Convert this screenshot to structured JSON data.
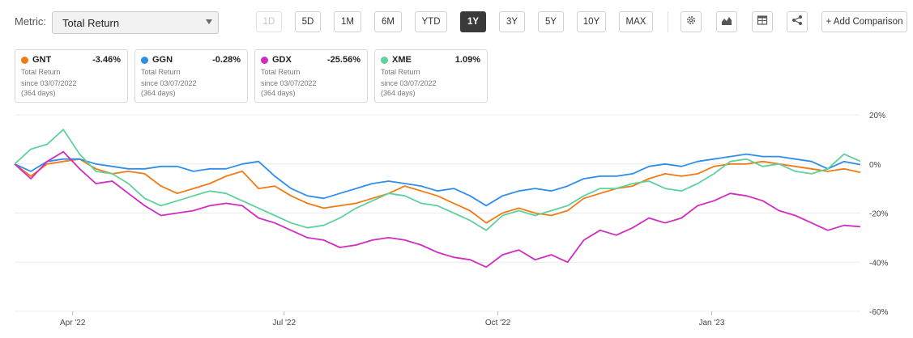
{
  "metric": {
    "label": "Metric:",
    "value": "Total Return"
  },
  "ranges": [
    {
      "label": "1D",
      "state": "disabled"
    },
    {
      "label": "5D",
      "state": "normal"
    },
    {
      "label": "1M",
      "state": "normal"
    },
    {
      "label": "6M",
      "state": "normal"
    },
    {
      "label": "YTD",
      "state": "normal"
    },
    {
      "label": "1Y",
      "state": "active"
    },
    {
      "label": "3Y",
      "state": "normal"
    },
    {
      "label": "5Y",
      "state": "normal"
    },
    {
      "label": "10Y",
      "state": "normal"
    },
    {
      "label": "MAX",
      "state": "normal"
    }
  ],
  "tools": {
    "icons": [
      "gear-icon",
      "chart-type-icon",
      "table-icon",
      "share-icon"
    ],
    "add_comparison": "+ Add Comparison"
  },
  "cards": [
    {
      "ticker": "GNT",
      "change": "-3.46%",
      "color": "#f07b16",
      "line1": "Total Return",
      "line2": "since 03/07/2022",
      "line3": "(364 days)"
    },
    {
      "ticker": "GGN",
      "change": "-0.28%",
      "color": "#2e8eea",
      "line1": "Total Return",
      "line2": "since 03/07/2022",
      "line3": "(364 days)"
    },
    {
      "ticker": "GDX",
      "change": "-25.56%",
      "color": "#d12cc0",
      "line1": "Total Return",
      "line2": "since 03/07/2022",
      "line3": "(364 days)"
    },
    {
      "ticker": "XME",
      "change": "1.09%",
      "color": "#5fd19b",
      "line1": "Total Return",
      "line2": "since 03/07/2022",
      "line3": "(364 days)"
    }
  ],
  "chart_data": {
    "type": "line",
    "x_axis": {
      "type": "date",
      "range": [
        "2022-03-07",
        "2023-03-06"
      ],
      "ticks": [
        {
          "date": "2022-04-01",
          "label": "Apr '22"
        },
        {
          "date": "2022-07-01",
          "label": "Jul '22"
        },
        {
          "date": "2022-10-01",
          "label": "Oct '22"
        },
        {
          "date": "2023-01-01",
          "label": "Jan '23"
        }
      ]
    },
    "y_axis": {
      "min": -60,
      "max": 20,
      "ticks": [
        20,
        0,
        -20,
        -40,
        -60
      ],
      "tick_labels": [
        "20%",
        "0%",
        "-20%",
        "-40%",
        "-60%"
      ],
      "position": "right"
    },
    "grid": {
      "horizontal": true,
      "vertical": false
    },
    "series": [
      {
        "name": "GNT",
        "color": "#f07b16",
        "points": [
          [
            "2022-03-07",
            0
          ],
          [
            "2022-03-14",
            -5
          ],
          [
            "2022-03-21",
            0
          ],
          [
            "2022-03-28",
            1
          ],
          [
            "2022-04-04",
            2
          ],
          [
            "2022-04-11",
            -2
          ],
          [
            "2022-04-18",
            -4
          ],
          [
            "2022-04-25",
            -3
          ],
          [
            "2022-05-02",
            -4
          ],
          [
            "2022-05-09",
            -9
          ],
          [
            "2022-05-16",
            -12
          ],
          [
            "2022-05-23",
            -10
          ],
          [
            "2022-05-30",
            -8
          ],
          [
            "2022-06-06",
            -5
          ],
          [
            "2022-06-13",
            -3
          ],
          [
            "2022-06-20",
            -10
          ],
          [
            "2022-06-27",
            -9
          ],
          [
            "2022-07-04",
            -13
          ],
          [
            "2022-07-11",
            -16
          ],
          [
            "2022-07-18",
            -18
          ],
          [
            "2022-07-25",
            -17
          ],
          [
            "2022-08-01",
            -16
          ],
          [
            "2022-08-08",
            -14
          ],
          [
            "2022-08-15",
            -12
          ],
          [
            "2022-08-22",
            -9
          ],
          [
            "2022-08-29",
            -11
          ],
          [
            "2022-09-05",
            -13
          ],
          [
            "2022-09-12",
            -16
          ],
          [
            "2022-09-19",
            -19
          ],
          [
            "2022-09-26",
            -24
          ],
          [
            "2022-10-03",
            -20
          ],
          [
            "2022-10-10",
            -18
          ],
          [
            "2022-10-17",
            -20
          ],
          [
            "2022-10-24",
            -21
          ],
          [
            "2022-10-31",
            -19
          ],
          [
            "2022-11-07",
            -14
          ],
          [
            "2022-11-14",
            -12
          ],
          [
            "2022-11-21",
            -10
          ],
          [
            "2022-11-28",
            -9
          ],
          [
            "2022-12-05",
            -6
          ],
          [
            "2022-12-12",
            -4
          ],
          [
            "2022-12-19",
            -5
          ],
          [
            "2022-12-26",
            -4
          ],
          [
            "2023-01-02",
            -1
          ],
          [
            "2023-01-09",
            0
          ],
          [
            "2023-01-16",
            0
          ],
          [
            "2023-01-23",
            1
          ],
          [
            "2023-01-30",
            0
          ],
          [
            "2023-02-06",
            -1
          ],
          [
            "2023-02-13",
            -2
          ],
          [
            "2023-02-20",
            -3
          ],
          [
            "2023-02-27",
            -2
          ],
          [
            "2023-03-06",
            -3.46
          ]
        ]
      },
      {
        "name": "GGN",
        "color": "#2e8eea",
        "points": [
          [
            "2022-03-07",
            0
          ],
          [
            "2022-03-14",
            -3
          ],
          [
            "2022-03-21",
            1
          ],
          [
            "2022-03-28",
            2
          ],
          [
            "2022-04-04",
            2
          ],
          [
            "2022-04-11",
            0
          ],
          [
            "2022-04-18",
            -1
          ],
          [
            "2022-04-25",
            -2
          ],
          [
            "2022-05-02",
            -2
          ],
          [
            "2022-05-09",
            -1
          ],
          [
            "2022-05-16",
            -1
          ],
          [
            "2022-05-23",
            -3
          ],
          [
            "2022-05-30",
            -2
          ],
          [
            "2022-06-06",
            -2
          ],
          [
            "2022-06-13",
            0
          ],
          [
            "2022-06-20",
            1
          ],
          [
            "2022-06-27",
            -5
          ],
          [
            "2022-07-04",
            -10
          ],
          [
            "2022-07-11",
            -13
          ],
          [
            "2022-07-18",
            -14
          ],
          [
            "2022-07-25",
            -12
          ],
          [
            "2022-08-01",
            -10
          ],
          [
            "2022-08-08",
            -8
          ],
          [
            "2022-08-15",
            -7
          ],
          [
            "2022-08-22",
            -8
          ],
          [
            "2022-08-29",
            -9
          ],
          [
            "2022-09-05",
            -11
          ],
          [
            "2022-09-12",
            -10
          ],
          [
            "2022-09-19",
            -13
          ],
          [
            "2022-09-26",
            -17
          ],
          [
            "2022-10-03",
            -13
          ],
          [
            "2022-10-10",
            -11
          ],
          [
            "2022-10-17",
            -10
          ],
          [
            "2022-10-24",
            -11
          ],
          [
            "2022-10-31",
            -9
          ],
          [
            "2022-11-07",
            -6
          ],
          [
            "2022-11-14",
            -5
          ],
          [
            "2022-11-21",
            -5
          ],
          [
            "2022-11-28",
            -4
          ],
          [
            "2022-12-05",
            -1
          ],
          [
            "2022-12-12",
            0
          ],
          [
            "2022-12-19",
            -1
          ],
          [
            "2022-12-26",
            1
          ],
          [
            "2023-01-02",
            2
          ],
          [
            "2023-01-09",
            3
          ],
          [
            "2023-01-16",
            4
          ],
          [
            "2023-01-23",
            3
          ],
          [
            "2023-01-30",
            3
          ],
          [
            "2023-02-06",
            2
          ],
          [
            "2023-02-13",
            1
          ],
          [
            "2023-02-20",
            -2
          ],
          [
            "2023-02-27",
            1
          ],
          [
            "2023-03-06",
            -0.28
          ]
        ]
      },
      {
        "name": "GDX",
        "color": "#d12cc0",
        "points": [
          [
            "2022-03-07",
            0
          ],
          [
            "2022-03-14",
            -6
          ],
          [
            "2022-03-21",
            1
          ],
          [
            "2022-03-28",
            5
          ],
          [
            "2022-04-04",
            -2
          ],
          [
            "2022-04-11",
            -8
          ],
          [
            "2022-04-18",
            -7
          ],
          [
            "2022-04-25",
            -12
          ],
          [
            "2022-05-02",
            -17
          ],
          [
            "2022-05-09",
            -21
          ],
          [
            "2022-05-16",
            -20
          ],
          [
            "2022-05-23",
            -19
          ],
          [
            "2022-05-30",
            -17
          ],
          [
            "2022-06-06",
            -16
          ],
          [
            "2022-06-13",
            -17
          ],
          [
            "2022-06-20",
            -22
          ],
          [
            "2022-06-27",
            -24
          ],
          [
            "2022-07-04",
            -27
          ],
          [
            "2022-07-11",
            -30
          ],
          [
            "2022-07-18",
            -31
          ],
          [
            "2022-07-25",
            -34
          ],
          [
            "2022-08-01",
            -33
          ],
          [
            "2022-08-08",
            -31
          ],
          [
            "2022-08-15",
            -30
          ],
          [
            "2022-08-22",
            -31
          ],
          [
            "2022-08-29",
            -33
          ],
          [
            "2022-09-05",
            -36
          ],
          [
            "2022-09-12",
            -38
          ],
          [
            "2022-09-19",
            -39
          ],
          [
            "2022-09-26",
            -42
          ],
          [
            "2022-10-03",
            -37
          ],
          [
            "2022-10-10",
            -35
          ],
          [
            "2022-10-17",
            -39
          ],
          [
            "2022-10-24",
            -37
          ],
          [
            "2022-10-31",
            -40
          ],
          [
            "2022-11-07",
            -31
          ],
          [
            "2022-11-14",
            -27
          ],
          [
            "2022-11-21",
            -29
          ],
          [
            "2022-11-28",
            -26
          ],
          [
            "2022-12-05",
            -22
          ],
          [
            "2022-12-12",
            -24
          ],
          [
            "2022-12-19",
            -22
          ],
          [
            "2022-12-26",
            -17
          ],
          [
            "2023-01-02",
            -15
          ],
          [
            "2023-01-09",
            -12
          ],
          [
            "2023-01-16",
            -13
          ],
          [
            "2023-01-23",
            -15
          ],
          [
            "2023-01-30",
            -19
          ],
          [
            "2023-02-06",
            -21
          ],
          [
            "2023-02-13",
            -24
          ],
          [
            "2023-02-20",
            -27
          ],
          [
            "2023-02-27",
            -25
          ],
          [
            "2023-03-06",
            -25.56
          ]
        ]
      },
      {
        "name": "XME",
        "color": "#5fd19b",
        "points": [
          [
            "2022-03-07",
            0
          ],
          [
            "2022-03-14",
            6
          ],
          [
            "2022-03-21",
            8
          ],
          [
            "2022-03-28",
            14
          ],
          [
            "2022-04-04",
            4
          ],
          [
            "2022-04-11",
            -3
          ],
          [
            "2022-04-18",
            -4
          ],
          [
            "2022-04-25",
            -8
          ],
          [
            "2022-05-02",
            -14
          ],
          [
            "2022-05-09",
            -17
          ],
          [
            "2022-05-16",
            -15
          ],
          [
            "2022-05-23",
            -13
          ],
          [
            "2022-05-30",
            -11
          ],
          [
            "2022-06-06",
            -12
          ],
          [
            "2022-06-13",
            -15
          ],
          [
            "2022-06-20",
            -18
          ],
          [
            "2022-06-27",
            -21
          ],
          [
            "2022-07-04",
            -24
          ],
          [
            "2022-07-11",
            -26
          ],
          [
            "2022-07-18",
            -25
          ],
          [
            "2022-07-25",
            -22
          ],
          [
            "2022-08-01",
            -18
          ],
          [
            "2022-08-08",
            -15
          ],
          [
            "2022-08-15",
            -12
          ],
          [
            "2022-08-22",
            -13
          ],
          [
            "2022-08-29",
            -16
          ],
          [
            "2022-09-05",
            -17
          ],
          [
            "2022-09-12",
            -20
          ],
          [
            "2022-09-19",
            -23
          ],
          [
            "2022-09-26",
            -27
          ],
          [
            "2022-10-03",
            -21
          ],
          [
            "2022-10-10",
            -19
          ],
          [
            "2022-10-17",
            -21
          ],
          [
            "2022-10-24",
            -19
          ],
          [
            "2022-10-31",
            -17
          ],
          [
            "2022-11-07",
            -13
          ],
          [
            "2022-11-14",
            -10
          ],
          [
            "2022-11-21",
            -10
          ],
          [
            "2022-11-28",
            -8
          ],
          [
            "2022-12-05",
            -7
          ],
          [
            "2022-12-12",
            -10
          ],
          [
            "2022-12-19",
            -11
          ],
          [
            "2022-12-26",
            -8
          ],
          [
            "2023-01-02",
            -4
          ],
          [
            "2023-01-09",
            1
          ],
          [
            "2023-01-16",
            2
          ],
          [
            "2023-01-23",
            -1
          ],
          [
            "2023-01-30",
            0
          ],
          [
            "2023-02-06",
            -3
          ],
          [
            "2023-02-13",
            -4
          ],
          [
            "2023-02-20",
            -2
          ],
          [
            "2023-02-27",
            4
          ],
          [
            "2023-03-06",
            1.09
          ]
        ]
      }
    ]
  }
}
